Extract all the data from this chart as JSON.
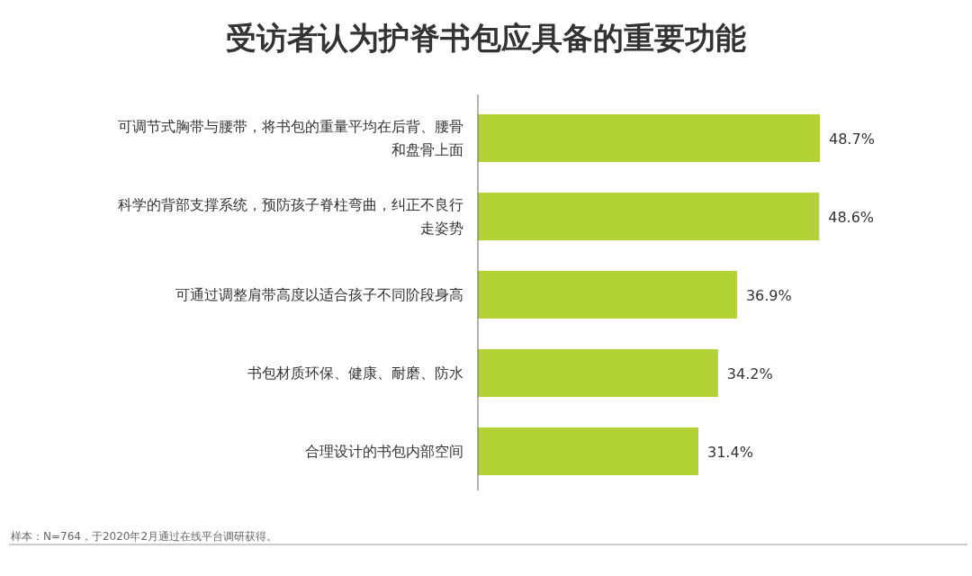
{
  "chart_data": {
    "type": "bar",
    "orientation": "horizontal",
    "title": "受访者认为护脊书包应具备的重要功能",
    "categories": [
      "可调节式胸带与腰带，将书包的重量平均在后背、腰骨和盘骨上面",
      "科学的背部支撑系统，预防孩子脊柱弯曲，纠正不良行走姿势",
      "可通过调整肩带高度以适合孩子不同阶段身高",
      "书包材质环保、健康、耐磨、防水",
      "合理设计的书包内部空间"
    ],
    "values": [
      48.7,
      48.6,
      36.9,
      34.2,
      31.4
    ],
    "value_labels": [
      "48.7%",
      "48.6%",
      "36.9%",
      "34.2%",
      "31.4%"
    ],
    "color": "#b3d235",
    "annotations": [
      "样本：N=764，于2020年2月通过在线平台调研获得。"
    ]
  }
}
